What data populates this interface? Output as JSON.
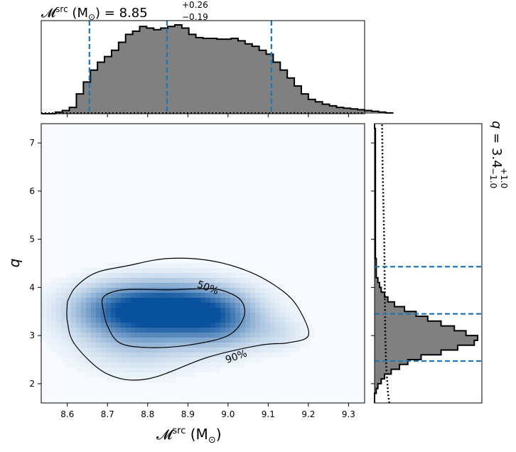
{
  "chart_data": {
    "type": "corner",
    "top_title": {
      "symbol": "𝓜",
      "sup": "src",
      "unit": " (M",
      "unit_sub": "⊙",
      "unit_close": ")",
      "value_text": " = 8.85",
      "plus": "+0.26",
      "minus": "−0.19"
    },
    "right_title": {
      "symbol": "q",
      "value_text": " = 3.4",
      "plus": "+1.0",
      "minus": "−1.0"
    },
    "xlabel": {
      "symbol": "𝓜",
      "sup": "src",
      "unit": " (M",
      "unit_sub": "⊙",
      "unit_close": ")"
    },
    "ylabel": "q",
    "xlim": [
      8.535,
      9.34
    ],
    "ylim": [
      1.6,
      7.4
    ],
    "xticks": [
      8.6,
      8.7,
      8.8,
      8.9,
      9.0,
      9.1,
      9.2,
      9.3
    ],
    "xtick_labels": [
      "8.6",
      "8.7",
      "8.8",
      "8.9",
      "9.0",
      "9.1",
      "9.2",
      "9.3"
    ],
    "yticks": [
      2,
      3,
      4,
      5,
      6,
      7
    ],
    "ytick_labels": [
      "2",
      "3",
      "4",
      "5",
      "6",
      "7"
    ],
    "x_quantiles": [
      8.655,
      8.848,
      9.108
    ],
    "q_quantiles": [
      2.47,
      3.45,
      4.43
    ],
    "x_hist": {
      "start": 8.535,
      "bin_width": 0.0175,
      "counts": [
        0,
        0,
        2,
        4,
        8,
        25,
        40,
        55,
        65,
        72,
        80,
        90,
        100,
        104,
        110,
        108,
        106,
        108,
        110,
        112,
        108,
        100,
        96,
        95,
        95,
        94,
        94,
        95,
        92,
        88,
        85,
        80,
        75,
        65,
        55,
        45,
        35,
        25,
        18,
        15,
        12,
        10,
        8,
        7,
        6,
        5,
        4,
        3,
        2,
        1
      ]
    },
    "q_hist": {
      "start": 1.6,
      "bin_width": 0.1,
      "counts": [
        0,
        0,
        1,
        2,
        4,
        6,
        10,
        15,
        20,
        28,
        40,
        50,
        60,
        62,
        55,
        48,
        40,
        32,
        25,
        18,
        12,
        8,
        6,
        4,
        3,
        2,
        1,
        1,
        1,
        1,
        0.5,
        0.5,
        0.5,
        0.5,
        0.5,
        0.5,
        0.5,
        0.5,
        0.5,
        0.5,
        0.5,
        0.5,
        0.5,
        0.5,
        0.5,
        0.5,
        0.5,
        0.5,
        0.5,
        0.5,
        0.5,
        0.5,
        0.5,
        0.5,
        0.5,
        0.5,
        0.5,
        0
      ]
    },
    "q_prior": [
      [
        1.6,
        5.5
      ],
      [
        1.8,
        5.0
      ],
      [
        2.0,
        4.8
      ],
      [
        2.2,
        4.5
      ],
      [
        2.4,
        4.3
      ],
      [
        2.6,
        4.2
      ],
      [
        2.8,
        4.1
      ],
      [
        3.0,
        4.0
      ],
      [
        3.5,
        3.9
      ],
      [
        4.0,
        3.8
      ],
      [
        4.5,
        3.7
      ],
      [
        5.0,
        3.6
      ],
      [
        5.5,
        3.4
      ],
      [
        6.0,
        3.2
      ],
      [
        6.5,
        3.0
      ],
      [
        7.0,
        2.9
      ],
      [
        7.4,
        2.8
      ]
    ],
    "contours": [
      {
        "label": "50%",
        "label_pos": [
          8.95,
          4.0
        ],
        "points": [
          [
            8.69,
            3.5
          ],
          [
            8.69,
            3.8
          ],
          [
            8.74,
            3.95
          ],
          [
            8.85,
            3.95
          ],
          [
            8.93,
            3.97
          ],
          [
            8.98,
            3.95
          ],
          [
            9.03,
            3.75
          ],
          [
            9.04,
            3.4
          ],
          [
            9.0,
            3.0
          ],
          [
            8.9,
            2.8
          ],
          [
            8.8,
            2.75
          ],
          [
            8.73,
            2.85
          ],
          [
            8.7,
            3.2
          ],
          [
            8.69,
            3.5
          ]
        ]
      },
      {
        "label": "90%",
        "label_pos": [
          9.02,
          2.57
        ],
        "points": [
          [
            8.6,
            3.7
          ],
          [
            8.62,
            4.0
          ],
          [
            8.67,
            4.3
          ],
          [
            8.75,
            4.45
          ],
          [
            8.85,
            4.6
          ],
          [
            8.96,
            4.55
          ],
          [
            9.06,
            4.3
          ],
          [
            9.14,
            3.9
          ],
          [
            9.18,
            3.5
          ],
          [
            9.2,
            3.0
          ],
          [
            9.15,
            2.85
          ],
          [
            9.08,
            2.8
          ],
          [
            8.95,
            2.55
          ],
          [
            8.8,
            2.1
          ],
          [
            8.7,
            2.2
          ],
          [
            8.62,
            2.8
          ],
          [
            8.6,
            3.3
          ],
          [
            8.6,
            3.7
          ]
        ]
      }
    ],
    "density_colormap": [
      "#f7fbff",
      "#08519c"
    ]
  }
}
